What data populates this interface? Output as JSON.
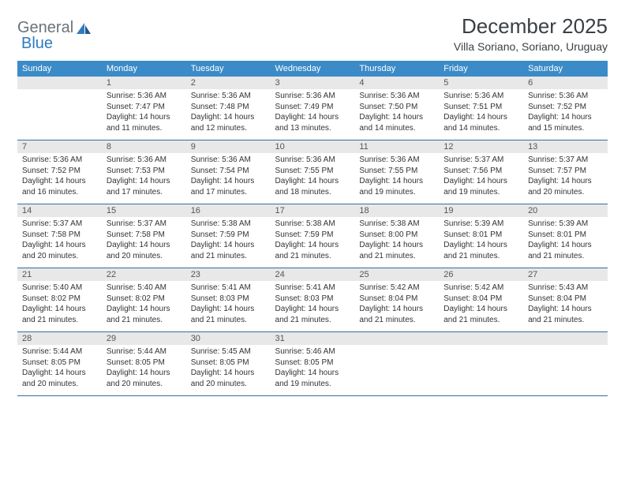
{
  "logo": {
    "text1": "General",
    "text2": "Blue"
  },
  "title": "December 2025",
  "location": "Villa Soriano, Soriano, Uruguay",
  "header_bg": "#3b8bc8",
  "daynum_bg": "#e8e8e8",
  "border_color": "#2f6fa5",
  "weekdays": [
    "Sunday",
    "Monday",
    "Tuesday",
    "Wednesday",
    "Thursday",
    "Friday",
    "Saturday"
  ],
  "weeks": [
    [
      null,
      {
        "n": "1",
        "sr": "Sunrise: 5:36 AM",
        "ss": "Sunset: 7:47 PM",
        "d1": "Daylight: 14 hours",
        "d2": "and 11 minutes."
      },
      {
        "n": "2",
        "sr": "Sunrise: 5:36 AM",
        "ss": "Sunset: 7:48 PM",
        "d1": "Daylight: 14 hours",
        "d2": "and 12 minutes."
      },
      {
        "n": "3",
        "sr": "Sunrise: 5:36 AM",
        "ss": "Sunset: 7:49 PM",
        "d1": "Daylight: 14 hours",
        "d2": "and 13 minutes."
      },
      {
        "n": "4",
        "sr": "Sunrise: 5:36 AM",
        "ss": "Sunset: 7:50 PM",
        "d1": "Daylight: 14 hours",
        "d2": "and 14 minutes."
      },
      {
        "n": "5",
        "sr": "Sunrise: 5:36 AM",
        "ss": "Sunset: 7:51 PM",
        "d1": "Daylight: 14 hours",
        "d2": "and 14 minutes."
      },
      {
        "n": "6",
        "sr": "Sunrise: 5:36 AM",
        "ss": "Sunset: 7:52 PM",
        "d1": "Daylight: 14 hours",
        "d2": "and 15 minutes."
      }
    ],
    [
      {
        "n": "7",
        "sr": "Sunrise: 5:36 AM",
        "ss": "Sunset: 7:52 PM",
        "d1": "Daylight: 14 hours",
        "d2": "and 16 minutes."
      },
      {
        "n": "8",
        "sr": "Sunrise: 5:36 AM",
        "ss": "Sunset: 7:53 PM",
        "d1": "Daylight: 14 hours",
        "d2": "and 17 minutes."
      },
      {
        "n": "9",
        "sr": "Sunrise: 5:36 AM",
        "ss": "Sunset: 7:54 PM",
        "d1": "Daylight: 14 hours",
        "d2": "and 17 minutes."
      },
      {
        "n": "10",
        "sr": "Sunrise: 5:36 AM",
        "ss": "Sunset: 7:55 PM",
        "d1": "Daylight: 14 hours",
        "d2": "and 18 minutes."
      },
      {
        "n": "11",
        "sr": "Sunrise: 5:36 AM",
        "ss": "Sunset: 7:55 PM",
        "d1": "Daylight: 14 hours",
        "d2": "and 19 minutes."
      },
      {
        "n": "12",
        "sr": "Sunrise: 5:37 AM",
        "ss": "Sunset: 7:56 PM",
        "d1": "Daylight: 14 hours",
        "d2": "and 19 minutes."
      },
      {
        "n": "13",
        "sr": "Sunrise: 5:37 AM",
        "ss": "Sunset: 7:57 PM",
        "d1": "Daylight: 14 hours",
        "d2": "and 20 minutes."
      }
    ],
    [
      {
        "n": "14",
        "sr": "Sunrise: 5:37 AM",
        "ss": "Sunset: 7:58 PM",
        "d1": "Daylight: 14 hours",
        "d2": "and 20 minutes."
      },
      {
        "n": "15",
        "sr": "Sunrise: 5:37 AM",
        "ss": "Sunset: 7:58 PM",
        "d1": "Daylight: 14 hours",
        "d2": "and 20 minutes."
      },
      {
        "n": "16",
        "sr": "Sunrise: 5:38 AM",
        "ss": "Sunset: 7:59 PM",
        "d1": "Daylight: 14 hours",
        "d2": "and 21 minutes."
      },
      {
        "n": "17",
        "sr": "Sunrise: 5:38 AM",
        "ss": "Sunset: 7:59 PM",
        "d1": "Daylight: 14 hours",
        "d2": "and 21 minutes."
      },
      {
        "n": "18",
        "sr": "Sunrise: 5:38 AM",
        "ss": "Sunset: 8:00 PM",
        "d1": "Daylight: 14 hours",
        "d2": "and 21 minutes."
      },
      {
        "n": "19",
        "sr": "Sunrise: 5:39 AM",
        "ss": "Sunset: 8:01 PM",
        "d1": "Daylight: 14 hours",
        "d2": "and 21 minutes."
      },
      {
        "n": "20",
        "sr": "Sunrise: 5:39 AM",
        "ss": "Sunset: 8:01 PM",
        "d1": "Daylight: 14 hours",
        "d2": "and 21 minutes."
      }
    ],
    [
      {
        "n": "21",
        "sr": "Sunrise: 5:40 AM",
        "ss": "Sunset: 8:02 PM",
        "d1": "Daylight: 14 hours",
        "d2": "and 21 minutes."
      },
      {
        "n": "22",
        "sr": "Sunrise: 5:40 AM",
        "ss": "Sunset: 8:02 PM",
        "d1": "Daylight: 14 hours",
        "d2": "and 21 minutes."
      },
      {
        "n": "23",
        "sr": "Sunrise: 5:41 AM",
        "ss": "Sunset: 8:03 PM",
        "d1": "Daylight: 14 hours",
        "d2": "and 21 minutes."
      },
      {
        "n": "24",
        "sr": "Sunrise: 5:41 AM",
        "ss": "Sunset: 8:03 PM",
        "d1": "Daylight: 14 hours",
        "d2": "and 21 minutes."
      },
      {
        "n": "25",
        "sr": "Sunrise: 5:42 AM",
        "ss": "Sunset: 8:04 PM",
        "d1": "Daylight: 14 hours",
        "d2": "and 21 minutes."
      },
      {
        "n": "26",
        "sr": "Sunrise: 5:42 AM",
        "ss": "Sunset: 8:04 PM",
        "d1": "Daylight: 14 hours",
        "d2": "and 21 minutes."
      },
      {
        "n": "27",
        "sr": "Sunrise: 5:43 AM",
        "ss": "Sunset: 8:04 PM",
        "d1": "Daylight: 14 hours",
        "d2": "and 21 minutes."
      }
    ],
    [
      {
        "n": "28",
        "sr": "Sunrise: 5:44 AM",
        "ss": "Sunset: 8:05 PM",
        "d1": "Daylight: 14 hours",
        "d2": "and 20 minutes."
      },
      {
        "n": "29",
        "sr": "Sunrise: 5:44 AM",
        "ss": "Sunset: 8:05 PM",
        "d1": "Daylight: 14 hours",
        "d2": "and 20 minutes."
      },
      {
        "n": "30",
        "sr": "Sunrise: 5:45 AM",
        "ss": "Sunset: 8:05 PM",
        "d1": "Daylight: 14 hours",
        "d2": "and 20 minutes."
      },
      {
        "n": "31",
        "sr": "Sunrise: 5:46 AM",
        "ss": "Sunset: 8:05 PM",
        "d1": "Daylight: 14 hours",
        "d2": "and 19 minutes."
      },
      null,
      null,
      null
    ]
  ]
}
